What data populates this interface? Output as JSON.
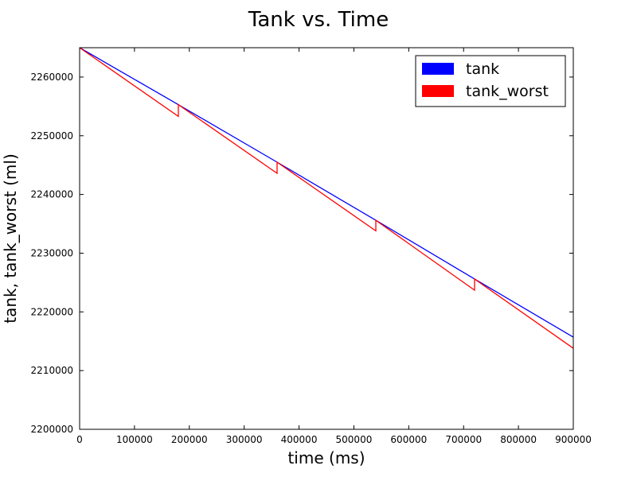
{
  "chart_data": {
    "type": "line",
    "title": "Tank vs. Time",
    "xlabel": "time (ms)",
    "ylabel": "tank, tank_worst (ml)",
    "xlim": [
      0,
      900000
    ],
    "ylim": [
      2200000,
      2265000
    ],
    "xticks": [
      0,
      100000,
      200000,
      300000,
      400000,
      500000,
      600000,
      700000,
      800000,
      900000
    ],
    "yticks": [
      2200000,
      2210000,
      2220000,
      2230000,
      2240000,
      2250000,
      2260000
    ],
    "grid": false,
    "legend_position": "top-right",
    "series": [
      {
        "name": "tank",
        "color": "#0000ff",
        "x": [
          0,
          180000,
          360000,
          540000,
          720000,
          900000
        ],
        "y": [
          2265000,
          2255300,
          2245500,
          2235600,
          2225600,
          2215700
        ]
      },
      {
        "name": "tank_worst",
        "color": "#ff0000",
        "x": [
          0,
          180000,
          180000,
          360000,
          360000,
          540000,
          540000,
          720000,
          720000,
          900000
        ],
        "y": [
          2265000,
          2253300,
          2255300,
          2243600,
          2245500,
          2233800,
          2235600,
          2223700,
          2225600,
          2213800
        ]
      }
    ]
  }
}
